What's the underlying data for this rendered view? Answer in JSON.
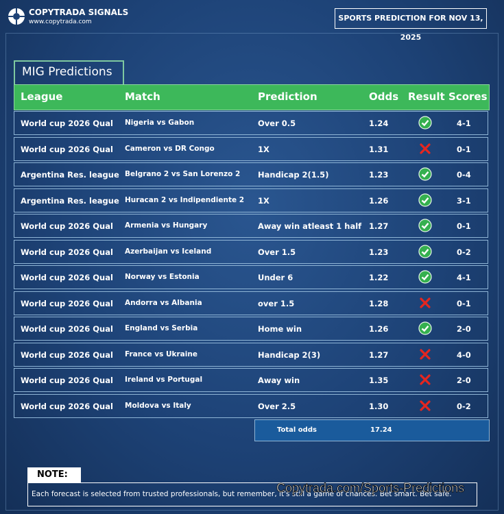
{
  "header": {
    "brand": "COPYTRADA SIGNALS",
    "url": "www.copytrada.com",
    "banner": "SPORTS PREDICTION FOR NOV 13, 2025"
  },
  "table": {
    "title": "MIG Predictions",
    "columns": [
      "League",
      "Match",
      "Prediction",
      "Odds",
      "Result",
      "Scores"
    ],
    "rows": [
      {
        "league": "World cup 2026 Qual",
        "match": "Nigeria vs Gabon",
        "prediction": "Over 0.5",
        "odds": "1.24",
        "result": "win",
        "score": "4-1"
      },
      {
        "league": "World cup 2026 Qual",
        "match": "Cameron vs DR Congo",
        "prediction": "1X",
        "odds": "1.31",
        "result": "loss",
        "score": "0-1"
      },
      {
        "league": "Argentina Res. league",
        "match": "Belgrano 2 vs San Lorenzo 2",
        "prediction": "Handicap 2(1.5)",
        "odds": "1.23",
        "result": "win",
        "score": "0-4"
      },
      {
        "league": "Argentina Res. league",
        "match": "Huracan 2 vs Indipendiente 2",
        "prediction": "1X",
        "odds": "1.26",
        "result": "win",
        "score": "3-1"
      },
      {
        "league": "World cup 2026 Qual",
        "match": "Armenia vs Hungary",
        "prediction": "Away win atleast 1 half",
        "odds": "1.27",
        "result": "win",
        "score": "0-1"
      },
      {
        "league": "World cup 2026 Qual",
        "match": "Azerbaijan vs Iceland",
        "prediction": "Over 1.5",
        "odds": "1.23",
        "result": "win",
        "score": "0-2"
      },
      {
        "league": "World cup 2026 Qual",
        "match": "Norway  vs Estonia",
        "prediction": "Under 6",
        "odds": "1.22",
        "result": "win",
        "score": "4-1"
      },
      {
        "league": "World cup 2026 Qual",
        "match": "Andorra vs Albania",
        "prediction": "over 1.5",
        "odds": "1.28",
        "result": "loss",
        "score": "0-1"
      },
      {
        "league": "World cup 2026 Qual",
        "match": "England vs Serbia",
        "prediction": "Home win",
        "odds": "1.26",
        "result": "win",
        "score": "2-0"
      },
      {
        "league": "World cup 2026 Qual",
        "match": "France vs Ukraine",
        "prediction": "Handicap 2(3)",
        "odds": "1.27",
        "result": "loss",
        "score": "4-0"
      },
      {
        "league": "World cup 2026 Qual",
        "match": "Ireland vs Portugal",
        "prediction": "Away win",
        "odds": "1.35",
        "result": "loss",
        "score": "2-0"
      },
      {
        "league": "World cup 2026 Qual",
        "match": "Moldova vs Italy",
        "prediction": "Over 2.5",
        "odds": "1.30",
        "result": "loss",
        "score": "0-2"
      }
    ],
    "total": {
      "label": "Total odds",
      "value": "17.24"
    }
  },
  "note": {
    "title": "NOTE:",
    "text": "Each forecast is selected from trusted professionals, but remember, it's still a game of chances. Bet smart. Bet safe."
  },
  "watermark": "Copytrada.com/Sports-Predictions"
}
